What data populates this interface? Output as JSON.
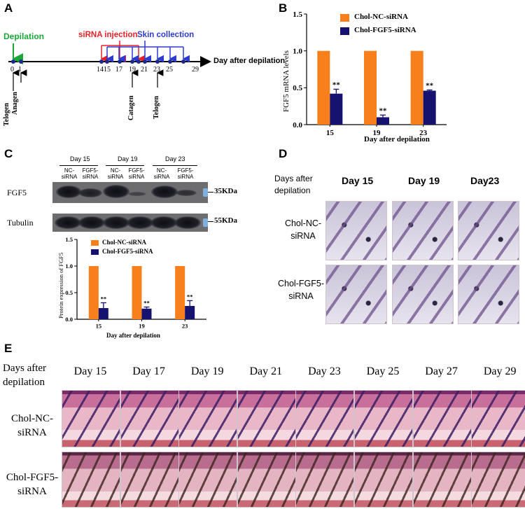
{
  "panels": {
    "A": "A",
    "B": "B",
    "C": "C",
    "D": "D",
    "E": "E"
  },
  "colors": {
    "nc": "#f77f1c",
    "fgf5": "#15136f",
    "depil": "#19a838",
    "inject": "#e8202a",
    "collect": "#2d3bd0"
  },
  "panelA": {
    "depilation": "Depilation",
    "injection": "siRNA injection",
    "collection": "Skin collection",
    "ticks": [
      "0",
      "1",
      "14",
      "15",
      "17",
      "19",
      "21",
      "23",
      "25",
      "29"
    ],
    "axis_label": "Day after depilation",
    "stages": [
      "Telogen",
      "Anagen",
      "Catagen",
      "Telogen"
    ]
  },
  "panelB": {
    "legend": [
      "Chol-NC-siRNA",
      "Chol-FGF5-siRNA"
    ],
    "ylabel": "FGF5 mRNA  levels",
    "xlabel": "Day after depilation",
    "yticks": [
      "0.0",
      "0.5",
      "1.0",
      "1.5"
    ],
    "sig": [
      "**",
      "**",
      "**"
    ]
  },
  "panelC": {
    "days": [
      "Day 15",
      "Day 19",
      "Day 23"
    ],
    "lanes": [
      "NC-\nsiRNA",
      "FGF5-\nsiRNA",
      "NC-\nsiRNA",
      "FGF5-\nsiRNA",
      "NC-\nsiRNA",
      "FGF5-\nsiRNA"
    ],
    "rows": [
      "FGF5",
      "Tubulin"
    ],
    "markers": [
      "35KDa",
      "55KDa"
    ],
    "legend": [
      "Chol-NC-siRNA",
      "Chol-FGF5-siRNA"
    ],
    "ylabel": "Protein expression of FGF5",
    "xlabel": "Day after depilation",
    "yticks": [
      "0.0",
      "0.5",
      "1.0",
      "1.5"
    ],
    "sig": [
      "**",
      "**",
      "**"
    ]
  },
  "panelD": {
    "header": "Days after\ndepilation",
    "cols": [
      "Day 15",
      "Day 19",
      "Day23"
    ],
    "rows": [
      "Chol-NC-\nsiRNA",
      "Chol-FGF5-\nsiRNA"
    ]
  },
  "panelE": {
    "header": "Days after\ndepilation",
    "cols": [
      "Day 15",
      "Day 17",
      "Day 19",
      "Day 21",
      "Day 23",
      "Day 25",
      "Day 27",
      "Day 29"
    ],
    "rows": [
      "Chol-NC-\nsiRNA",
      "Chol-FGF5-\nsiRNA"
    ]
  },
  "chart_data": [
    {
      "type": "bar",
      "categories": [
        "15",
        "19",
        "23"
      ],
      "series": [
        {
          "name": "Chol-NC-siRNA",
          "values": [
            1.0,
            1.0,
            1.0
          ],
          "errors": [
            0,
            0,
            0
          ]
        },
        {
          "name": "Chol-FGF5-siRNA",
          "values": [
            0.42,
            0.1,
            0.46
          ],
          "errors": [
            0.06,
            0.03,
            0.01
          ]
        }
      ],
      "xlabel": "Day after depilation",
      "ylabel": "FGF5 mRNA  levels",
      "ylim": [
        0,
        1.5
      ],
      "legend": "top-left"
    },
    {
      "type": "bar",
      "categories": [
        "15",
        "19",
        "23"
      ],
      "series": [
        {
          "name": "Chol-NC-siRNA",
          "values": [
            1.0,
            1.0,
            1.0
          ],
          "errors": [
            0,
            0,
            0
          ]
        },
        {
          "name": "Chol-FGF5-siRNA",
          "values": [
            0.21,
            0.2,
            0.25
          ],
          "errors": [
            0.1,
            0.03,
            0.1
          ]
        }
      ],
      "xlabel": "Day after depilation",
      "ylabel": "Protein expression of FGF5",
      "ylim": [
        0,
        1.5
      ],
      "legend": "top-left"
    }
  ]
}
